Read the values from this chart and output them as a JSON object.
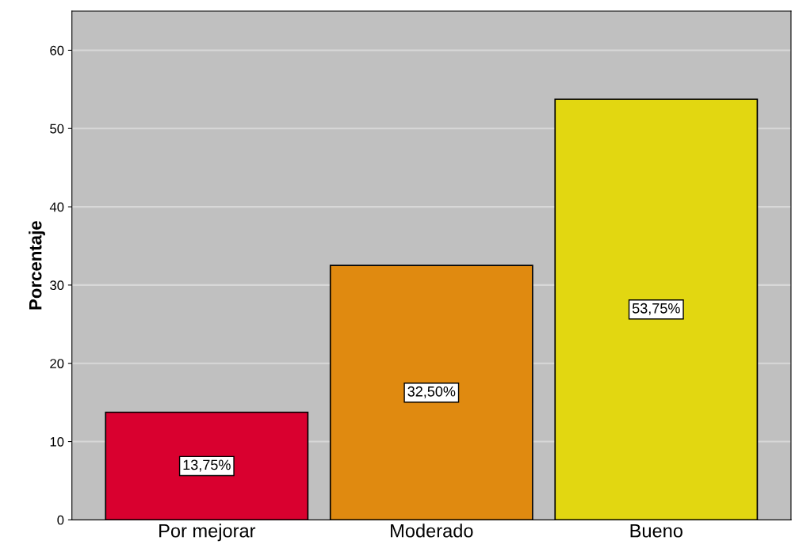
{
  "chart_data": {
    "type": "bar",
    "ylabel": "Porcentaje",
    "categories": [
      "Por mejorar",
      "Moderado",
      "Bueno"
    ],
    "values": [
      13.75,
      32.5,
      53.75
    ],
    "colors": [
      "#d9002f",
      "#e08a10",
      "#e2d711"
    ],
    "value_labels": [
      "13,75%",
      "32,50%",
      "53,75%"
    ],
    "ylim": [
      0,
      65
    ],
    "yticks": [
      0,
      10,
      20,
      30,
      40,
      50,
      60
    ],
    "grid": "y"
  }
}
